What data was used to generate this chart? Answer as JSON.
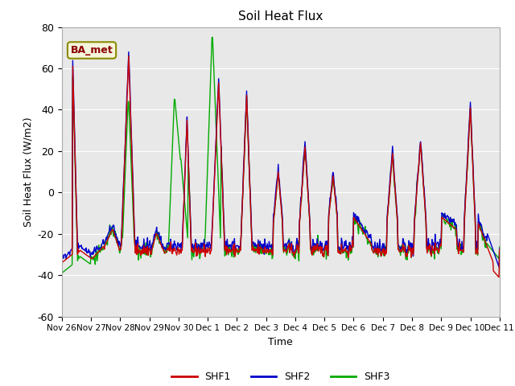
{
  "title": "Soil Heat Flux",
  "ylabel": "Soil Heat Flux (W/m2)",
  "xlabel": "Time",
  "ylim": [
    -60,
    80
  ],
  "background_color": "#ffffff",
  "plot_bg_color": "#e8e8e8",
  "shf1_color": "#cc0000",
  "shf2_color": "#0000cc",
  "shf3_color": "#00aa00",
  "line_width": 1.0,
  "legend_label": "BA_met",
  "series_labels": [
    "SHF1",
    "SHF2",
    "SHF3"
  ],
  "x_tick_labels": [
    "Nov 26",
    "Nov 27",
    "Nov 28",
    "Nov 29",
    "Nov 30",
    "Dec 1",
    "Dec 2",
    "Dec 3",
    "Dec 4",
    "Dec 5",
    "Dec 6",
    "Dec 7",
    "Dec 8",
    "Dec 9",
    "Dec 10",
    "Dec 11"
  ],
  "x_tick_positions": [
    0,
    48,
    96,
    144,
    192,
    240,
    288,
    336,
    384,
    432,
    480,
    528,
    576,
    624,
    672,
    720
  ]
}
